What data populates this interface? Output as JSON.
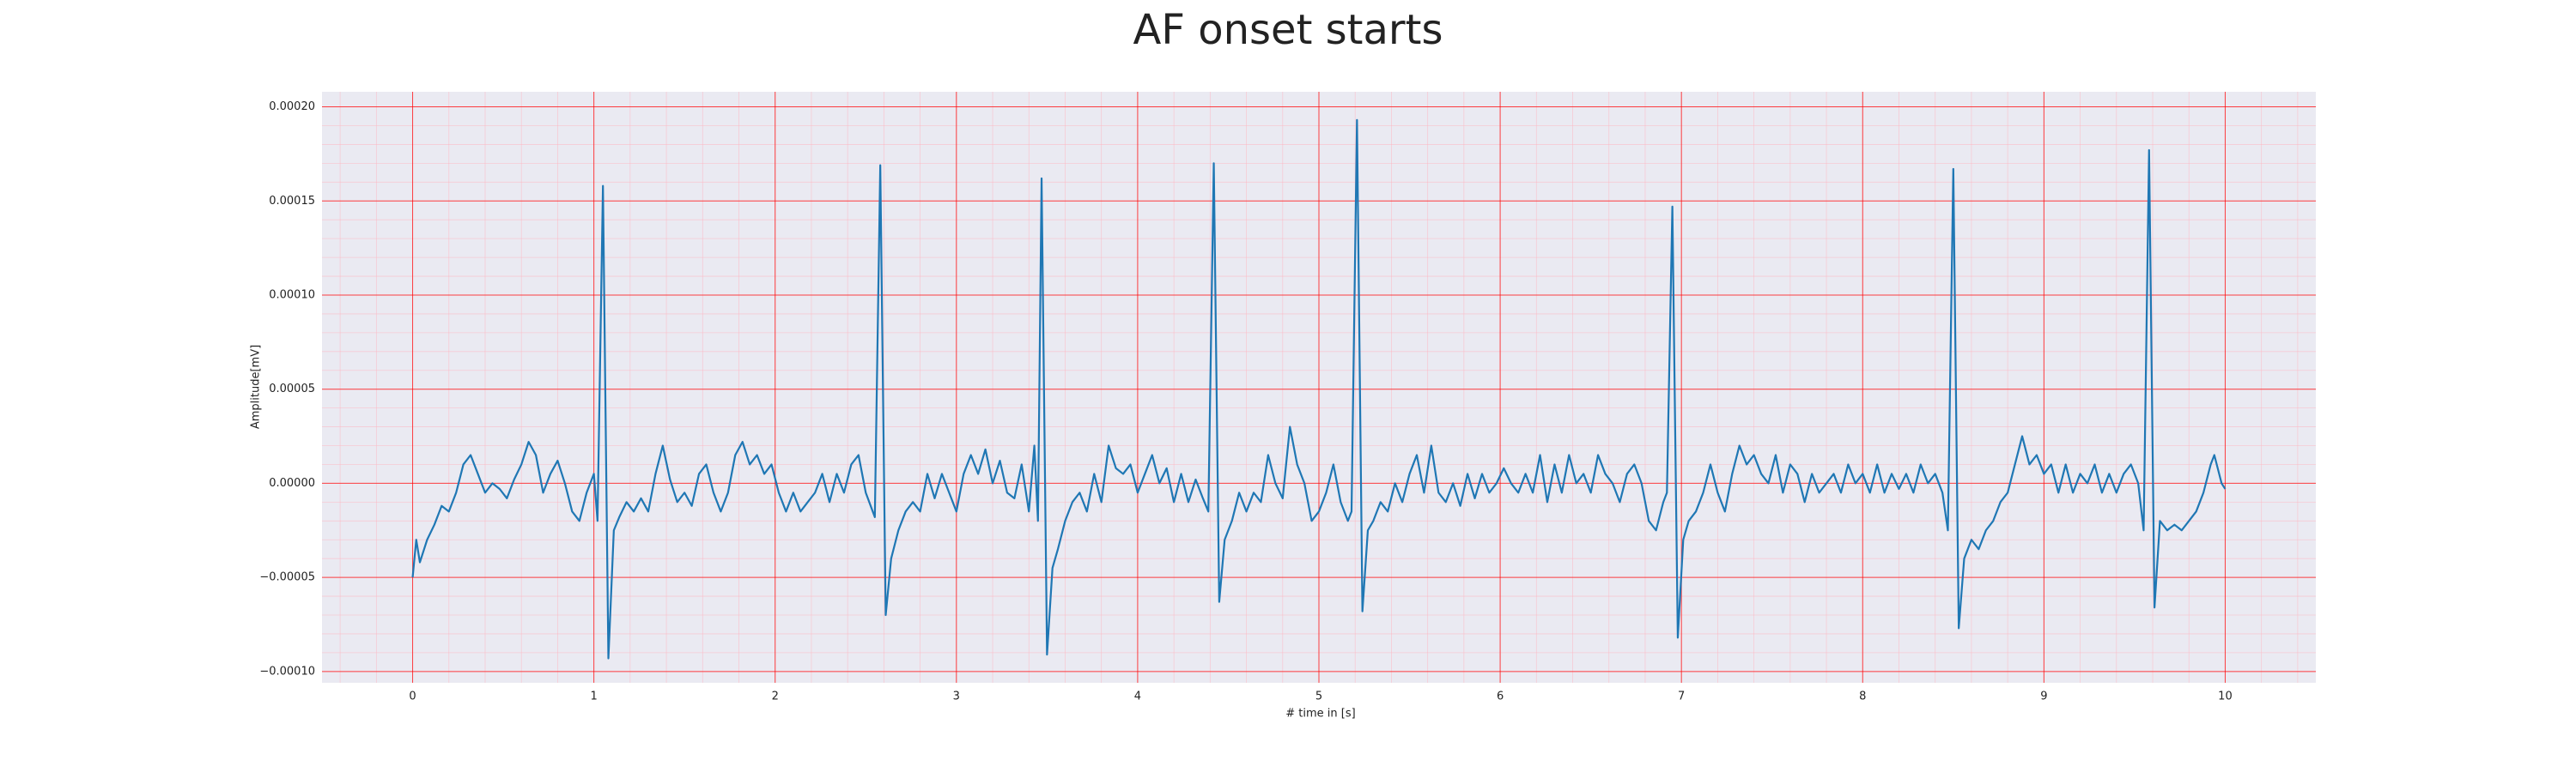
{
  "chart_data": {
    "type": "line",
    "title": "AF onset starts",
    "xlabel": "# time in [s]",
    "ylabel": "Amplitude[mV]",
    "xlim": [
      -0.5,
      10.5
    ],
    "ylim": [
      -0.000106,
      0.000208
    ],
    "xticks": [
      0,
      1,
      2,
      3,
      4,
      5,
      6,
      7,
      8,
      9,
      10
    ],
    "yticks": [
      {
        "value": -0.0001,
        "label": "−0.00010"
      },
      {
        "value": -5e-05,
        "label": "−0.00005"
      },
      {
        "value": 0,
        "label": "0.00000"
      },
      {
        "value": 5e-05,
        "label": "0.00005"
      },
      {
        "value": 0.0001,
        "label": "0.00010"
      },
      {
        "value": 0.00015,
        "label": "0.00015"
      },
      {
        "value": 0.0002,
        "label": "0.00020"
      }
    ],
    "grid": true,
    "minor_grid": true,
    "series": [
      {
        "color": "#1f77b4",
        "x": [
          0,
          0.02,
          0.04,
          0.08,
          0.12,
          0.16,
          0.2,
          0.24,
          0.28,
          0.32,
          0.36,
          0.4,
          0.44,
          0.48,
          0.52,
          0.56,
          0.6,
          0.64,
          0.68,
          0.72,
          0.76,
          0.8,
          0.84,
          0.88,
          0.92,
          0.96,
          1.0,
          1.02,
          1.05,
          1.08,
          1.11,
          1.14,
          1.18,
          1.22,
          1.26,
          1.3,
          1.34,
          1.38,
          1.42,
          1.46,
          1.5,
          1.54,
          1.58,
          1.62,
          1.66,
          1.7,
          1.74,
          1.78,
          1.82,
          1.86,
          1.9,
          1.94,
          1.98,
          2.02,
          2.06,
          2.1,
          2.14,
          2.18,
          2.22,
          2.26,
          2.3,
          2.34,
          2.38,
          2.42,
          2.46,
          2.5,
          2.55,
          2.58,
          2.61,
          2.64,
          2.68,
          2.72,
          2.76,
          2.8,
          2.84,
          2.88,
          2.92,
          2.96,
          3.0,
          3.04,
          3.08,
          3.12,
          3.16,
          3.2,
          3.24,
          3.28,
          3.32,
          3.36,
          3.4,
          3.43,
          3.45,
          3.47,
          3.5,
          3.53,
          3.56,
          3.6,
          3.64,
          3.68,
          3.72,
          3.76,
          3.8,
          3.84,
          3.88,
          3.92,
          3.96,
          4.0,
          4.04,
          4.08,
          4.12,
          4.16,
          4.2,
          4.24,
          4.28,
          4.32,
          4.36,
          4.39,
          4.42,
          4.45,
          4.48,
          4.52,
          4.56,
          4.6,
          4.64,
          4.68,
          4.72,
          4.76,
          4.8,
          4.84,
          4.88,
          4.92,
          4.96,
          5.0,
          5.04,
          5.08,
          5.12,
          5.16,
          5.18,
          5.21,
          5.24,
          5.27,
          5.3,
          5.34,
          5.38,
          5.42,
          5.46,
          5.5,
          5.54,
          5.58,
          5.62,
          5.66,
          5.7,
          5.74,
          5.78,
          5.82,
          5.86,
          5.9,
          5.94,
          5.98,
          6.02,
          6.06,
          6.1,
          6.14,
          6.18,
          6.22,
          6.26,
          6.3,
          6.34,
          6.38,
          6.42,
          6.46,
          6.5,
          6.54,
          6.58,
          6.62,
          6.66,
          6.7,
          6.74,
          6.78,
          6.82,
          6.86,
          6.9,
          6.92,
          6.95,
          6.98,
          7.01,
          7.04,
          7.08,
          7.12,
          7.16,
          7.2,
          7.24,
          7.28,
          7.32,
          7.36,
          7.4,
          7.44,
          7.48,
          7.52,
          7.56,
          7.6,
          7.64,
          7.68,
          7.72,
          7.76,
          7.8,
          7.84,
          7.88,
          7.92,
          7.96,
          8.0,
          8.04,
          8.08,
          8.12,
          8.16,
          8.2,
          8.24,
          8.28,
          8.32,
          8.36,
          8.4,
          8.44,
          8.47,
          8.5,
          8.53,
          8.56,
          8.6,
          8.64,
          8.68,
          8.72,
          8.76,
          8.8,
          8.84,
          8.88,
          8.92,
          8.96,
          9.0,
          9.04,
          9.08,
          9.12,
          9.16,
          9.2,
          9.24,
          9.28,
          9.32,
          9.36,
          9.4,
          9.44,
          9.48,
          9.52,
          9.55,
          9.58,
          9.61,
          9.64,
          9.68,
          9.72,
          9.76,
          9.8,
          9.84,
          9.88,
          9.92,
          9.94,
          9.98,
          10.0
        ],
        "values": [
          -5e-05,
          -3e-05,
          -4.2e-05,
          -3e-05,
          -2.2e-05,
          -1.2e-05,
          -1.5e-05,
          -5e-06,
          1e-05,
          1.5e-05,
          5e-06,
          -5e-06,
          0,
          -3e-06,
          -8e-06,
          2e-06,
          1e-05,
          2.2e-05,
          1.5e-05,
          -5e-06,
          5e-06,
          1.2e-05,
          0,
          -1.5e-05,
          -2e-05,
          -5e-06,
          5e-06,
          -2e-05,
          0.000158,
          -9.3e-05,
          -2.5e-05,
          -1.8e-05,
          -1e-05,
          -1.5e-05,
          -8e-06,
          -1.5e-05,
          5e-06,
          2e-05,
          2e-06,
          -1e-05,
          -5e-06,
          -1.2e-05,
          5e-06,
          1e-05,
          -5e-06,
          -1.5e-05,
          -5e-06,
          1.5e-05,
          2.2e-05,
          1e-05,
          1.5e-05,
          5e-06,
          1e-05,
          -5e-06,
          -1.5e-05,
          -5e-06,
          -1.5e-05,
          -1e-05,
          -5e-06,
          5e-06,
          -1e-05,
          5e-06,
          -5e-06,
          1e-05,
          1.5e-05,
          -5e-06,
          -1.8e-05,
          0.000169,
          -7e-05,
          -4e-05,
          -2.5e-05,
          -1.5e-05,
          -1e-05,
          -1.5e-05,
          5e-06,
          -8e-06,
          5e-06,
          -5e-06,
          -1.5e-05,
          5e-06,
          1.5e-05,
          5e-06,
          1.8e-05,
          0,
          1.2e-05,
          -5e-06,
          -8e-06,
          1e-05,
          -1.5e-05,
          2e-05,
          -2e-05,
          0.000162,
          -9.1e-05,
          -4.5e-05,
          -3.5e-05,
          -2e-05,
          -1e-05,
          -5e-06,
          -1.5e-05,
          5e-06,
          -1e-05,
          2e-05,
          8e-06,
          5e-06,
          1e-05,
          -5e-06,
          5e-06,
          1.5e-05,
          0,
          8e-06,
          -1e-05,
          5e-06,
          -1e-05,
          2e-06,
          -8e-06,
          -1.5e-05,
          0.00017,
          -6.3e-05,
          -3e-05,
          -2e-05,
          -5e-06,
          -1.5e-05,
          -5e-06,
          -1e-05,
          1.5e-05,
          0,
          -8e-06,
          3e-05,
          1e-05,
          0,
          -2e-05,
          -1.5e-05,
          -5e-06,
          1e-05,
          -1e-05,
          -2e-05,
          -1.5e-05,
          0.000193,
          -6.8e-05,
          -2.5e-05,
          -2e-05,
          -1e-05,
          -1.5e-05,
          0,
          -1e-05,
          5e-06,
          1.5e-05,
          -5e-06,
          2e-05,
          -5e-06,
          -1e-05,
          0,
          -1.2e-05,
          5e-06,
          -8e-06,
          5e-06,
          -5e-06,
          0,
          8e-06,
          0,
          -5e-06,
          5e-06,
          -5e-06,
          1.5e-05,
          -1e-05,
          1e-05,
          -5e-06,
          1.5e-05,
          0,
          5e-06,
          -5e-06,
          1.5e-05,
          5e-06,
          0,
          -1e-05,
          5e-06,
          1e-05,
          0,
          -2e-05,
          -2.5e-05,
          -1e-05,
          -5e-06,
          0.000147,
          -8.2e-05,
          -3e-05,
          -2e-05,
          -1.5e-05,
          -5e-06,
          1e-05,
          -5e-06,
          -1.5e-05,
          5e-06,
          2e-05,
          1e-05,
          1.5e-05,
          5e-06,
          0,
          1.5e-05,
          -5e-06,
          1e-05,
          5e-06,
          -1e-05,
          5e-06,
          -5e-06,
          0,
          5e-06,
          -5e-06,
          1e-05,
          0,
          5e-06,
          -5e-06,
          1e-05,
          -5e-06,
          5e-06,
          -3e-06,
          5e-06,
          -5e-06,
          1e-05,
          0,
          5e-06,
          -5e-06,
          -2.5e-05,
          0.000167,
          -7.7e-05,
          -4e-05,
          -3e-05,
          -3.5e-05,
          -2.5e-05,
          -2e-05,
          -1e-05,
          -5e-06,
          1e-05,
          2.5e-05,
          1e-05,
          1.5e-05,
          5e-06,
          1e-05,
          -5e-06,
          1e-05,
          -5e-06,
          5e-06,
          0,
          1e-05,
          -5e-06,
          5e-06,
          -5e-06,
          5e-06,
          1e-05,
          0,
          -2.5e-05,
          0.000177,
          -6.6e-05,
          -2e-05,
          -2.5e-05,
          -2.2e-05,
          -2.5e-05,
          -2e-05,
          -1.5e-05,
          -5e-06,
          1e-05,
          1.5e-05,
          0,
          -3e-06
        ]
      }
    ]
  }
}
